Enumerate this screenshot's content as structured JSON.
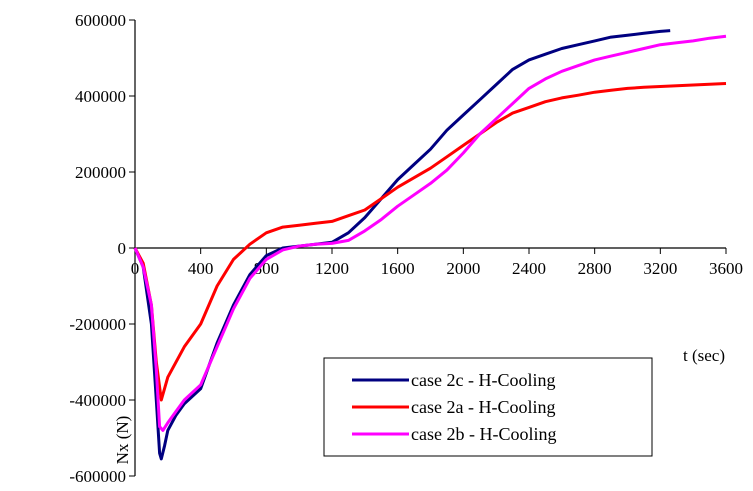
{
  "chart_data": {
    "type": "line",
    "title": "",
    "xlabel": "t (sec)",
    "ylabel": "Nx (N)",
    "xlim": [
      0,
      3600
    ],
    "ylim": [
      -600000,
      600000
    ],
    "x_ticks": [
      0,
      400,
      800,
      1200,
      1600,
      2000,
      2400,
      2800,
      3200,
      3600
    ],
    "y_ticks": [
      600000,
      400000,
      200000,
      0,
      -200000,
      -400000,
      -600000
    ],
    "x_tick_labels": [
      "0",
      "400",
      "800",
      "1200",
      "1600",
      "2000",
      "2400",
      "2800",
      "3200",
      "3600"
    ],
    "y_tick_labels": [
      "600000",
      "400000",
      "200000",
      "0",
      "-200000",
      "-400000",
      "-600000"
    ],
    "grid": false,
    "legend_position": "bottom-right",
    "series": [
      {
        "name": "case 2c - H-Cooling",
        "color": "#000080",
        "x": [
          0,
          50,
          100,
          130,
          150,
          160,
          180,
          200,
          250,
          300,
          400,
          500,
          600,
          700,
          800,
          900,
          1000,
          1100,
          1200,
          1300,
          1400,
          1500,
          1600,
          1700,
          1800,
          1900,
          2000,
          2100,
          2200,
          2300,
          2400,
          2500,
          2600,
          2700,
          2800,
          2900,
          3000,
          3100,
          3200,
          3260
        ],
        "y": [
          0,
          -50000,
          -200000,
          -400000,
          -540000,
          -555000,
          -520000,
          -480000,
          -440000,
          -410000,
          -370000,
          -250000,
          -150000,
          -70000,
          -20000,
          0,
          5000,
          10000,
          15000,
          40000,
          80000,
          130000,
          180000,
          220000,
          260000,
          310000,
          350000,
          390000,
          430000,
          470000,
          495000,
          510000,
          525000,
          535000,
          545000,
          555000,
          560000,
          565000,
          570000,
          572000
        ]
      },
      {
        "name": "case 2a - H-Cooling",
        "color": "#ff0000",
        "x": [
          0,
          50,
          100,
          130,
          160,
          200,
          300,
          400,
          500,
          600,
          700,
          800,
          900,
          1000,
          1100,
          1200,
          1300,
          1400,
          1500,
          1600,
          1700,
          1800,
          1900,
          2000,
          2100,
          2200,
          2300,
          2400,
          2500,
          2600,
          2700,
          2800,
          2900,
          3000,
          3100,
          3200,
          3300,
          3400,
          3500,
          3600
        ],
        "y": [
          0,
          -40000,
          -150000,
          -300000,
          -400000,
          -340000,
          -260000,
          -200000,
          -100000,
          -30000,
          10000,
          40000,
          55000,
          60000,
          65000,
          70000,
          85000,
          100000,
          130000,
          160000,
          185000,
          210000,
          240000,
          270000,
          300000,
          330000,
          355000,
          370000,
          385000,
          395000,
          402000,
          410000,
          415000,
          420000,
          423000,
          425000,
          427000,
          429000,
          431000,
          433000
        ]
      },
      {
        "name": "case 2b - H-Cooling",
        "color": "#ff00ff",
        "x": [
          0,
          50,
          100,
          130,
          150,
          170,
          200,
          250,
          300,
          400,
          500,
          600,
          700,
          800,
          900,
          1000,
          1100,
          1200,
          1300,
          1400,
          1500,
          1600,
          1700,
          1800,
          1900,
          2000,
          2100,
          2200,
          2300,
          2400,
          2500,
          2600,
          2700,
          2800,
          2900,
          3000,
          3100,
          3200,
          3300,
          3400,
          3500,
          3600
        ],
        "y": [
          0,
          -50000,
          -150000,
          -320000,
          -470000,
          -480000,
          -460000,
          -430000,
          -400000,
          -360000,
          -260000,
          -160000,
          -80000,
          -30000,
          -5000,
          5000,
          10000,
          12000,
          20000,
          45000,
          75000,
          110000,
          140000,
          170000,
          205000,
          250000,
          300000,
          340000,
          380000,
          420000,
          445000,
          465000,
          480000,
          495000,
          505000,
          515000,
          525000,
          535000,
          540000,
          545000,
          552000,
          557000
        ]
      }
    ]
  }
}
